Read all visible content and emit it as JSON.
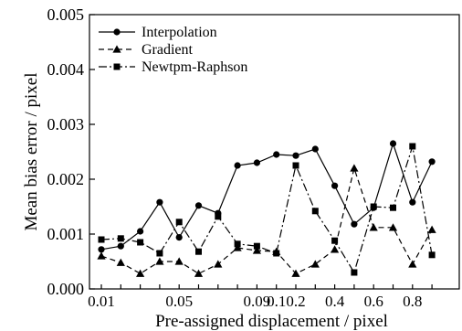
{
  "chart_data": {
    "type": "line",
    "title": "",
    "xlabel": "Pre-assigned displacement / pixel",
    "ylabel": "Mean bias error / pixel",
    "ylim": [
      0,
      0.005
    ],
    "yticks": [
      "0.000",
      "0.001",
      "0.002",
      "0.003",
      "0.004",
      "0.005"
    ],
    "x_tick_labels": [
      "0.01",
      "0.05",
      "0.09",
      "0.1",
      "0.2",
      "0.4",
      "0.6",
      "0.8"
    ],
    "x_points": [
      "0.01",
      "0.02",
      "0.03",
      "0.04",
      "0.05",
      "0.06",
      "0.07",
      "0.08",
      "0.09",
      "0.1",
      "0.2",
      "0.3",
      "0.4",
      "0.5",
      "0.6",
      "0.7",
      "0.8",
      "0.9"
    ],
    "grid": false,
    "legend_position": "top-left",
    "series": [
      {
        "name": "Interpolation",
        "marker": "circle",
        "dash": "solid",
        "values": [
          0.00072,
          0.00078,
          0.00105,
          0.00158,
          0.00094,
          0.00152,
          0.00138,
          0.00225,
          0.0023,
          0.00245,
          0.00243,
          0.00255,
          0.00188,
          0.00118,
          0.00148,
          0.00265,
          0.00158,
          0.00232
        ]
      },
      {
        "name": "Gradient",
        "marker": "triangle",
        "dash": "dashed",
        "values": [
          0.0006,
          0.00048,
          0.00028,
          0.0005,
          0.0005,
          0.00028,
          0.00045,
          0.00075,
          0.0007,
          0.00068,
          0.00028,
          0.00045,
          0.00072,
          0.0022,
          0.00112,
          0.00112,
          0.00045,
          0.00108
        ]
      },
      {
        "name": "Newtpm-Raphson",
        "marker": "square",
        "dash": "dashdot",
        "values": [
          0.0009,
          0.00092,
          0.00085,
          0.00065,
          0.00122,
          0.00068,
          0.00132,
          0.00082,
          0.00078,
          0.00065,
          0.00225,
          0.00142,
          0.00088,
          0.0003,
          0.0015,
          0.00148,
          0.0026,
          0.00062
        ]
      }
    ]
  }
}
